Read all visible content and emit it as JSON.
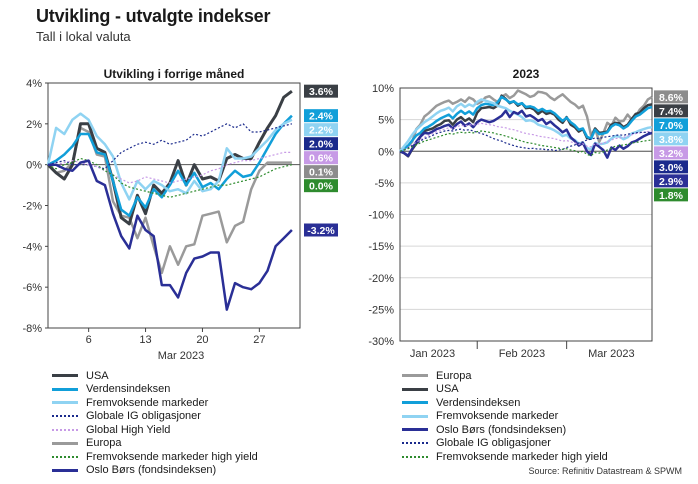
{
  "header": {
    "title": "Utvikling - utvalgte indekser",
    "subtitle": "Tall i lokal valuta"
  },
  "source": "Source: Refinitiv Datastream & SPWM",
  "colors": {
    "usa": "#3a3f45",
    "verden": "#119fd9",
    "fremvoksende": "#8fd3f2",
    "globale_ig": "#1a2a8c",
    "global_hy": "#c79ae6",
    "europa": "#9a9a9a",
    "fremvoksende_hy": "#2e8b2e",
    "oslo": "#2a2f96"
  },
  "chart_data": [
    {
      "type": "line",
      "title": "Utvikling i forrige måned",
      "xlabel": "Mar 2023",
      "x_ticks": [
        "6",
        "13",
        "20",
        "27"
      ],
      "x_tick_days": [
        6,
        13,
        20,
        27
      ],
      "y_ticks": [
        "4%",
        "2%",
        "0%",
        "-2%",
        "-4%",
        "-6%",
        "-8%"
      ],
      "ylim": [
        -8,
        4
      ],
      "xlim": [
        1,
        32
      ],
      "grid": false,
      "x": [
        1,
        2,
        3,
        4,
        5,
        6,
        7,
        8,
        9,
        10,
        11,
        12,
        13,
        14,
        15,
        16,
        17,
        18,
        19,
        20,
        21,
        22,
        23,
        24,
        25,
        26,
        27,
        28,
        29,
        30,
        31
      ],
      "series": [
        {
          "name": "Europa",
          "key": "europa",
          "dash": false,
          "width": 2.5,
          "values": [
            0,
            -0.4,
            -0.3,
            0.1,
            1.8,
            1.6,
            0.5,
            0.4,
            -1.8,
            -2.5,
            -2.6,
            -3.6,
            -2.6,
            -4.0,
            -5.3,
            -4.0,
            -4.9,
            -4.0,
            -3.9,
            -2.5,
            -2.4,
            -2.3,
            -3.8,
            -3.0,
            -2.8,
            -1.2,
            -0.3,
            0.1,
            0.1,
            0.1,
            0.1
          ],
          "end_label": "0.1%",
          "end_label_color": "#8c8c8c"
        },
        {
          "name": "USA",
          "key": "usa",
          "dash": false,
          "width": 3,
          "values": [
            0,
            -0.4,
            -0.7,
            0,
            2.0,
            2.0,
            0.8,
            0.6,
            -0.8,
            -2.6,
            -2.9,
            -1.5,
            -2.4,
            -1.0,
            -1.4,
            -0.9,
            0.2,
            -1.0,
            0,
            -0.7,
            -0.6,
            -0.8,
            0.3,
            0.5,
            0.3,
            0.3,
            1.1,
            1.8,
            2.4,
            3.3,
            3.6
          ],
          "end_label": "3.6%",
          "end_label_color": "#3a3f45"
        },
        {
          "name": "Verdensindeksen",
          "key": "verden",
          "dash": false,
          "width": 2.5,
          "values": [
            0,
            0.2,
            0.5,
            0.9,
            1.5,
            1.5,
            0.6,
            0.5,
            -0.8,
            -2.2,
            -2.5,
            -1.6,
            -2.1,
            -1.2,
            -1.6,
            -1.0,
            -0.3,
            -1.0,
            -0.4,
            -1.1,
            -0.9,
            -1.2,
            -0.7,
            -0.3,
            -0.6,
            -0.5,
            0.1,
            0.8,
            1.5,
            2.0,
            2.4
          ],
          "end_label": "2.4%",
          "end_label_color": "#119fd9"
        },
        {
          "name": "Fremvoksende markeder",
          "key": "fremvoksende",
          "dash": false,
          "width": 2.5,
          "values": [
            0,
            1.8,
            1.5,
            2.2,
            2.5,
            2.2,
            1.4,
            1.0,
            0.4,
            -0.9,
            -1.7,
            -0.8,
            -1.2,
            -0.8,
            -1.0,
            -1.3,
            -1.2,
            -1.4,
            -0.8,
            -1.3,
            -1.2,
            -0.8,
            0.8,
            0.3,
            0.3,
            0.4,
            0.8,
            1.2,
            1.7,
            2.0,
            2.2
          ],
          "end_label": "2.2%",
          "end_label_color": "#8fd3f2"
        },
        {
          "name": "Globale IG obligasjoner",
          "key": "globale_ig",
          "dash": true,
          "width": 1.2,
          "values": [
            0,
            0.1,
            0.2,
            0,
            0,
            0,
            -0.1,
            -0.2,
            0.2,
            0.6,
            0.8,
            1.0,
            1.1,
            1.0,
            1.2,
            1.0,
            1.1,
            1.2,
            1.5,
            1.4,
            1.6,
            1.8,
            2.0,
            1.8,
            2.0,
            1.6,
            1.6,
            1.7,
            1.8,
            1.9,
            2.0
          ],
          "end_label": "2.0%",
          "end_label_color": "#1a2a8c"
        },
        {
          "name": "Global High Yield",
          "key": "global_hy",
          "dash": true,
          "width": 1.2,
          "values": [
            0,
            0,
            0.1,
            0.2,
            0.1,
            0,
            -0.1,
            -0.3,
            -0.5,
            -0.7,
            -0.9,
            -0.8,
            -0.6,
            -0.7,
            -0.8,
            -0.9,
            -0.8,
            -0.7,
            -0.6,
            -0.5,
            -0.3,
            -0.2,
            0,
            0.1,
            0.2,
            0.2,
            0.3,
            0.4,
            0.5,
            0.6,
            0.6
          ],
          "end_label": "0.6%",
          "end_label_color": "#c79ae6"
        },
        {
          "name": "Fremvoksende markeder high yield",
          "key": "fremvoksende_hy",
          "dash": true,
          "width": 1.2,
          "values": [
            0,
            -0.2,
            0,
            0.1,
            0.3,
            0.2,
            0,
            -0.3,
            -0.5,
            -0.9,
            -1.1,
            -1.2,
            -1.3,
            -1.4,
            -1.5,
            -1.6,
            -1.5,
            -1.4,
            -1.3,
            -1.2,
            -1.1,
            -1.0,
            -1.0,
            -0.9,
            -0.8,
            -0.7,
            -0.6,
            -0.4,
            -0.2,
            -0.1,
            0
          ],
          "end_label": "0.0%",
          "end_label_color": "#2e8b2e"
        },
        {
          "name": "Oslo Børs (fondsindeksen)",
          "key": "oslo",
          "dash": false,
          "width": 2.5,
          "values": [
            0,
            0,
            -0.2,
            -0.3,
            0.1,
            0.2,
            -0.8,
            -1.0,
            -2.4,
            -3.5,
            -4.1,
            -2.5,
            -3.2,
            -3.5,
            -5.9,
            -5.9,
            -6.5,
            -5.3,
            -4.6,
            -4.5,
            -4.3,
            -4.3,
            -7.1,
            -5.8,
            -6.0,
            -6.1,
            -5.8,
            -5.2,
            -4.0,
            -3.6,
            -3.2
          ],
          "end_label": "-3.2%",
          "end_label_color": "#2a2f96"
        }
      ]
    },
    {
      "type": "line",
      "title": "2023",
      "x_ticks": [
        "Jan 2023",
        "Feb 2023",
        "Mar 2023"
      ],
      "x_tick_index": [
        8,
        30,
        52
      ],
      "x_sep_index": [
        19,
        41
      ],
      "y_ticks": [
        "10%",
        "5%",
        "0%",
        "-5%",
        "-10%",
        "-15%",
        "-20%",
        "-25%",
        "-30%"
      ],
      "ylim": [
        -30,
        10
      ],
      "xlim": [
        0,
        63
      ],
      "grid": true,
      "series": [
        {
          "name": "Europa",
          "key": "europa",
          "dash": false,
          "width": 2.5,
          "values": [
            0,
            0.5,
            0.8,
            1.5,
            3.5,
            4.2,
            5.5,
            6.0,
            6.6,
            7.2,
            7.5,
            7.8,
            8.0,
            7.5,
            7.8,
            8.2,
            7.8,
            8.5,
            8.2,
            7.5,
            7.8,
            8.5,
            8.7,
            8.2,
            7.8,
            8.6,
            9.0,
            8.4,
            8.8,
            9.6,
            9.3,
            9.0,
            8.6,
            8.8,
            9.4,
            9.3,
            9.1,
            8.5,
            8.1,
            8.6,
            9.0,
            8.4,
            7.8,
            7.4,
            6.8,
            7.2,
            5.5,
            2.5,
            3.6,
            1.5,
            2.8,
            4.5,
            4.0,
            5.3,
            4.7,
            4.8,
            5.8,
            5.0,
            5.5,
            6.6,
            7.2,
            8.2,
            8.6
          ],
          "end_label": "8.6%",
          "end_label_color": "#8c8c8c"
        },
        {
          "name": "USA",
          "key": "usa",
          "dash": false,
          "width": 2.5,
          "values": [
            0,
            -0.3,
            -0.8,
            0.3,
            1.2,
            2.3,
            3.2,
            3.4,
            3.6,
            4.0,
            4.3,
            4.8,
            4.9,
            4.2,
            5.0,
            5.4,
            4.8,
            5.2,
            4.6,
            6.1,
            6.8,
            6.9,
            7.0,
            6.8,
            7.2,
            8.8,
            8.3,
            7.6,
            7.9,
            7.2,
            7.6,
            6.8,
            6.9,
            6.6,
            5.9,
            6.4,
            5.9,
            6.1,
            5.8,
            5.0,
            4.5,
            5.4,
            4.2,
            3.8,
            3.1,
            3.5,
            2.1,
            2.0,
            3.6,
            2.9,
            3.0,
            3.1,
            4.2,
            4.5,
            4.4,
            3.8,
            4.2,
            5.1,
            5.9,
            6.1,
            6.8,
            7.3,
            7.4
          ],
          "end_label": "7.4%",
          "end_label_color": "#3a3f45"
        },
        {
          "name": "Verdensindeksen",
          "key": "verden",
          "dash": false,
          "width": 2.5,
          "values": [
            0,
            0.4,
            0.9,
            1.7,
            2.5,
            2.9,
            3.6,
            3.9,
            4.3,
            4.8,
            5.2,
            5.5,
            5.8,
            5.2,
            5.9,
            6.4,
            5.9,
            6.3,
            5.8,
            6.8,
            7.3,
            7.5,
            7.4,
            7.3,
            7.7,
            8.6,
            8.2,
            7.7,
            7.9,
            7.4,
            7.6,
            7.0,
            7.1,
            6.9,
            6.4,
            6.7,
            6.3,
            6.4,
            6.0,
            5.4,
            4.8,
            5.3,
            4.6,
            4.1,
            3.4,
            3.6,
            2.3,
            2.0,
            3.4,
            2.7,
            2.8,
            3.0,
            3.9,
            4.3,
            4.1,
            3.6,
            4.0,
            4.8,
            5.5,
            5.8,
            6.3,
            6.8,
            7.0
          ],
          "end_label": "7.0%",
          "end_label_color": "#119fd9"
        },
        {
          "name": "Fremvoksende markeder",
          "key": "fremvoksende",
          "dash": false,
          "width": 2.5,
          "values": [
            0,
            0.8,
            1.6,
            2.6,
            3.4,
            4.0,
            4.6,
            5.0,
            5.5,
            6.0,
            6.4,
            6.6,
            6.9,
            6.3,
            7.1,
            7.5,
            7.0,
            7.4,
            7.1,
            7.8,
            8.2,
            8.0,
            7.8,
            7.6,
            7.2,
            7.0,
            6.8,
            6.4,
            6.1,
            5.8,
            5.4,
            4.8,
            4.9,
            4.7,
            4.2,
            4.0,
            3.8,
            3.6,
            3.3,
            2.9,
            2.4,
            2.6,
            2.0,
            1.8,
            1.2,
            1.4,
            0.5,
            0.3,
            1.3,
            1.1,
            1.2,
            1.4,
            2.0,
            2.4,
            2.3,
            1.9,
            2.2,
            2.8,
            3.0,
            3.3,
            3.5,
            3.7,
            3.8
          ],
          "end_label": "3.8%",
          "end_label_color": "#8fd3f2"
        },
        {
          "name": "Oslo Børs (fondsindeksen)",
          "key": "oslo",
          "dash": false,
          "width": 2.5,
          "values": [
            0,
            -0.3,
            -0.7,
            0.4,
            1.5,
            2.3,
            2.9,
            2.8,
            3.1,
            3.5,
            3.7,
            4.0,
            4.2,
            3.6,
            4.3,
            4.7,
            4.0,
            4.4,
            3.8,
            4.6,
            5.0,
            4.8,
            4.6,
            4.8,
            5.2,
            5.6,
            6.4,
            5.4,
            6.2,
            5.9,
            6.4,
            5.5,
            5.7,
            5.3,
            4.8,
            5.1,
            4.3,
            4.7,
            4.1,
            3.6,
            3.0,
            3.4,
            2.2,
            1.6,
            0.9,
            1.3,
            0.0,
            -0.6,
            1.2,
            0.7,
            0.2,
            -1.0,
            0.6,
            0.2,
            0.9,
            0.4,
            0.8,
            1.4,
            1.6,
            2.0,
            2.4,
            2.7,
            2.9
          ],
          "end_label": "2.9%",
          "end_label_color": "#2a2f96"
        },
        {
          "name": "Global High Yield",
          "key": "global_hy",
          "dash": true,
          "width": 1.2,
          "values": [
            0,
            0.3,
            0.6,
            1.0,
            1.4,
            1.8,
            2.2,
            2.5,
            2.8,
            3.1,
            3.3,
            3.5,
            3.7,
            3.6,
            3.9,
            4.1,
            4.0,
            4.2,
            4.1,
            4.3,
            4.4,
            4.3,
            4.2,
            4.1,
            3.9,
            3.8,
            3.7,
            3.5,
            3.4,
            3.2,
            3.0,
            2.8,
            2.7,
            2.6,
            2.4,
            2.3,
            2.2,
            2.1,
            2.0,
            1.8,
            1.6,
            1.7,
            1.5,
            1.3,
            1.1,
            1.2,
            0.8,
            0.7,
            1.2,
            1.1,
            1.3,
            1.5,
            1.8,
            2.0,
            2.1,
            2.2,
            2.4,
            2.6,
            2.8,
            2.9,
            3.0,
            3.1,
            3.2
          ],
          "end_label": "3.2%",
          "end_label_color": "#c79ae6"
        },
        {
          "name": "Globale IG obligasjoner",
          "key": "globale_ig",
          "dash": true,
          "width": 1.2,
          "values": [
            0,
            0.2,
            0.5,
            0.9,
            1.2,
            1.6,
            2.0,
            2.2,
            2.5,
            2.8,
            3.0,
            3.2,
            3.3,
            3.2,
            3.4,
            3.5,
            3.3,
            3.4,
            3.2,
            3.0,
            2.8,
            2.6,
            2.3,
            2.0,
            1.8,
            1.6,
            1.3,
            1.1,
            0.9,
            0.7,
            0.6,
            0.5,
            0.4,
            0.5,
            0.3,
            0.4,
            0.2,
            0.3,
            0.1,
            0.2,
            0.3,
            0.6,
            0.8,
            1.0,
            1.3,
            1.5,
            1.8,
            1.9,
            2.1,
            2.0,
            2.2,
            2.3,
            2.4,
            2.5,
            2.6,
            2.5,
            2.7,
            2.8,
            2.9,
            3.0,
            3.0,
            3.0,
            3.0
          ],
          "end_label": "3.0%",
          "end_label_color": "#1a2a8c"
        },
        {
          "name": "Fremvoksende markeder high yield",
          "key": "fremvoksende_hy",
          "dash": true,
          "width": 1.2,
          "values": [
            0,
            0.2,
            0.4,
            0.7,
            1.0,
            1.3,
            1.6,
            1.8,
            2.0,
            2.2,
            2.4,
            2.6,
            2.8,
            2.7,
            2.9,
            3.0,
            2.9,
            3.0,
            2.9,
            3.1,
            3.2,
            3.1,
            3.0,
            2.9,
            2.7,
            2.6,
            2.4,
            2.2,
            2.0,
            1.8,
            1.6,
            1.4,
            1.3,
            1.2,
            1.0,
            0.9,
            0.8,
            0.7,
            0.6,
            0.5,
            0.3,
            0.4,
            0.2,
            0.1,
            -0.2,
            0.0,
            -0.5,
            -0.7,
            -0.2,
            -0.3,
            -0.1,
            0.2,
            0.5,
            0.8,
            0.9,
            1.0,
            1.1,
            1.3,
            1.4,
            1.5,
            1.6,
            1.7,
            1.8
          ],
          "end_label": "1.8%",
          "end_label_color": "#2e8b2e"
        }
      ]
    }
  ],
  "legends": {
    "left": [
      "usa",
      "verden",
      "fremvoksende",
      "globale_ig",
      "global_hy",
      "europa",
      "fremvoksende_hy",
      "oslo"
    ],
    "right": [
      "europa",
      "usa",
      "verden",
      "fremvoksende",
      "oslo",
      "globale_ig",
      "fremvoksende_hy"
    ]
  }
}
